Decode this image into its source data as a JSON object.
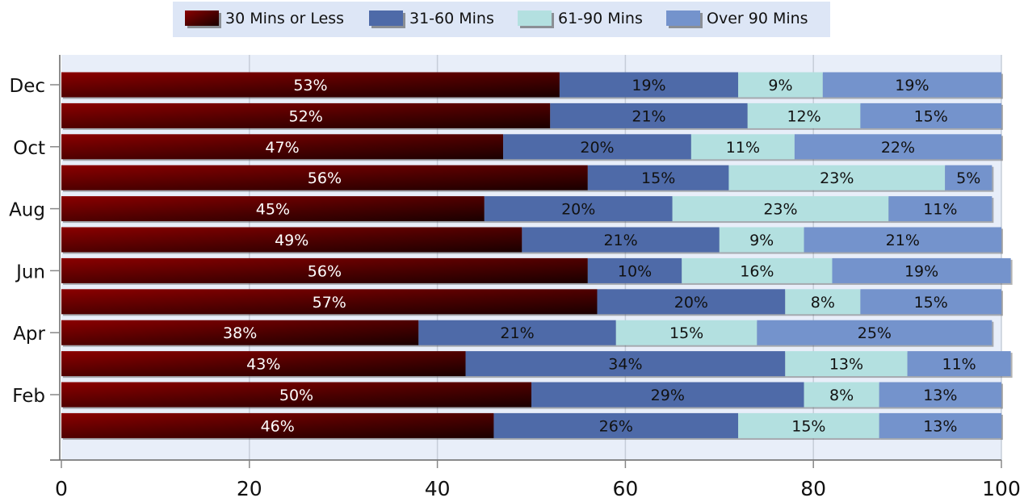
{
  "chart_data": {
    "type": "bar",
    "orientation": "horizontal",
    "stacked": true,
    "categories": [
      "Dec",
      "",
      "Oct",
      "",
      "Aug",
      "",
      "Jun",
      "",
      "Apr",
      "",
      "Feb",
      ""
    ],
    "series": [
      {
        "name": "30 Mins or Less",
        "color": "#7a0000",
        "values": [
          53,
          52,
          47,
          56,
          45,
          49,
          56,
          57,
          38,
          43,
          50,
          46
        ],
        "labels": [
          "53%",
          "52%",
          "47%",
          "56%",
          "45%",
          "49%",
          "56%",
          "57%",
          "38%",
          "43%",
          "50%",
          "46%"
        ]
      },
      {
        "name": "31-60 Mins",
        "color": "#4e6aa8",
        "values": [
          19,
          21,
          20,
          15,
          20,
          21,
          10,
          20,
          21,
          34,
          29,
          26
        ],
        "labels": [
          "19%",
          "21%",
          "20%",
          "15%",
          "20%",
          "21%",
          "10%",
          "20%",
          "21%",
          "34%",
          "29%",
          "26%"
        ]
      },
      {
        "name": "61-90 Mins",
        "color": "#b3e0e0",
        "values": [
          9,
          12,
          11,
          23,
          23,
          9,
          16,
          8,
          15,
          13,
          8,
          15
        ],
        "labels": [
          "9%",
          "12%",
          "11%",
          "23%",
          "23%",
          "9%",
          "16%",
          "8%",
          "15%",
          "13%",
          "8%",
          "15%"
        ]
      },
      {
        "name": "Over 90 Mins",
        "color": "#7493cc",
        "values": [
          19,
          15,
          22,
          5,
          11,
          21,
          19,
          15,
          25,
          11,
          13,
          13
        ],
        "labels": [
          "19%",
          "15%",
          "22%",
          "5%",
          "11%",
          "21%",
          "19%",
          "15%",
          "25%",
          "11%",
          "13%",
          "13%"
        ]
      }
    ],
    "xlim": [
      0,
      100
    ],
    "xticks": [
      "0",
      "20",
      "40",
      "60",
      "80",
      "100"
    ],
    "title": "",
    "xlabel": "",
    "ylabel": "",
    "grid": true,
    "legend_position": "top"
  }
}
